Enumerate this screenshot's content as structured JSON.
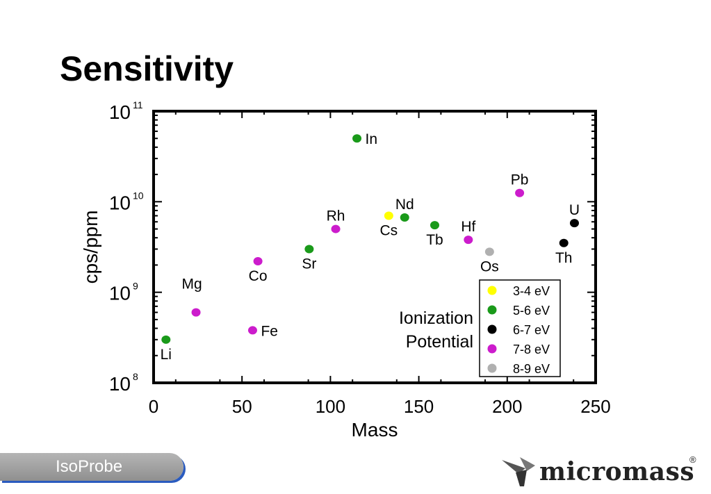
{
  "page": {
    "title": "Sensitivity",
    "footer_label": "IsoProbe",
    "logo_text": "micromass",
    "logo_mark": "®"
  },
  "chart_data": {
    "type": "scatter",
    "title": "",
    "xlabel": "Mass",
    "ylabel": "cps/ppm",
    "xlim": [
      0,
      250
    ],
    "ylim": [
      100000000,
      100000000000
    ],
    "yscale": "log",
    "x_ticks": [
      0,
      50,
      100,
      150,
      200,
      250
    ],
    "y_ticks": [
      {
        "base": "10",
        "exp": "8",
        "value": 100000000
      },
      {
        "base": "10",
        "exp": "9",
        "value": 1000000000
      },
      {
        "base": "10",
        "exp": "10",
        "value": 10000000000
      },
      {
        "base": "10",
        "exp": "11",
        "value": 100000000000
      }
    ],
    "grid": false,
    "legend_title": [
      "Ionization",
      "Potential"
    ],
    "legend": [
      {
        "label": "3-4 eV",
        "color": "#ffff00"
      },
      {
        "label": "5-6 eV",
        "color": "#1a9a1a"
      },
      {
        "label": "6-7 eV",
        "color": "#000000"
      },
      {
        "label": "7-8 eV",
        "color": "#cc1ccc"
      },
      {
        "label": "8-9 eV",
        "color": "#b0b0b0"
      }
    ],
    "points": [
      {
        "label": "Li",
        "x": 7,
        "y": 300000000,
        "color": "#1a9a1a",
        "label_pos": "below"
      },
      {
        "label": "Mg",
        "x": 24,
        "y": 600000000,
        "color": "#cc1ccc",
        "label_pos": "above-left"
      },
      {
        "label": "Fe",
        "x": 56,
        "y": 380000000,
        "color": "#cc1ccc",
        "label_pos": "right"
      },
      {
        "label": "Co",
        "x": 59,
        "y": 2200000000,
        "color": "#cc1ccc",
        "label_pos": "below"
      },
      {
        "label": "Sr",
        "x": 88,
        "y": 3000000000,
        "color": "#1a9a1a",
        "label_pos": "below"
      },
      {
        "label": "Rh",
        "x": 103,
        "y": 5000000000,
        "color": "#cc1ccc",
        "label_pos": "above"
      },
      {
        "label": "In",
        "x": 115,
        "y": 50000000000,
        "color": "#1a9a1a",
        "label_pos": "right"
      },
      {
        "label": "Cs",
        "x": 133,
        "y": 7000000000,
        "color": "#ffff00",
        "label_pos": "below"
      },
      {
        "label": "Nd",
        "x": 142,
        "y": 6700000000,
        "color": "#1a9a1a",
        "label_pos": "above"
      },
      {
        "label": "Tb",
        "x": 159,
        "y": 5500000000,
        "color": "#1a9a1a",
        "label_pos": "below"
      },
      {
        "label": "Hf",
        "x": 178,
        "y": 3800000000,
        "color": "#cc1ccc",
        "label_pos": "above"
      },
      {
        "label": "Os",
        "x": 190,
        "y": 2800000000,
        "color": "#b0b0b0",
        "label_pos": "below"
      },
      {
        "label": "Pb",
        "x": 207,
        "y": 12500000000,
        "color": "#cc1ccc",
        "label_pos": "above"
      },
      {
        "label": "Th",
        "x": 232,
        "y": 3500000000,
        "color": "#000000",
        "label_pos": "below"
      },
      {
        "label": "U",
        "x": 238,
        "y": 5800000000,
        "color": "#000000",
        "label_pos": "above"
      }
    ]
  }
}
